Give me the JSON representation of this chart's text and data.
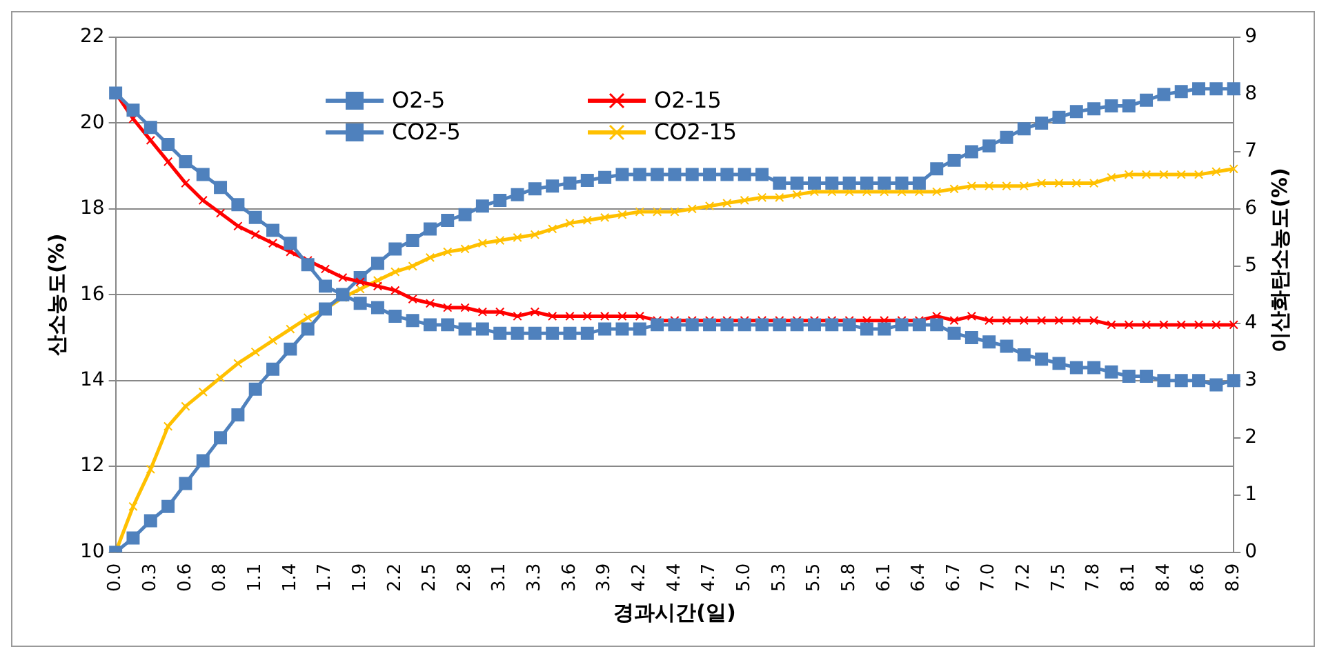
{
  "chart_data": {
    "type": "line",
    "xlabel": "경과시간(일)",
    "ylabel": "산소농도(%)",
    "y2label": "이산화탄소농도(%)",
    "categories": [
      "0.0",
      null,
      "0.3",
      null,
      "0.6",
      null,
      "0.8",
      null,
      "1.1",
      null,
      "1.4",
      null,
      "1.7",
      null,
      "1.9",
      null,
      "2.2",
      null,
      "2.5",
      null,
      "2.8",
      null,
      "3.1",
      null,
      "3.3",
      null,
      "3.6",
      null,
      "3.9",
      null,
      "4.2",
      null,
      "4.4",
      null,
      "4.7",
      null,
      "5.0",
      null,
      "5.3",
      null,
      "5.5",
      null,
      "5.8",
      null,
      "6.1",
      null,
      "6.4",
      null,
      "6.7",
      null,
      "7.0",
      null,
      "7.2",
      null,
      "7.5",
      null,
      "7.8",
      null,
      "8.1",
      null,
      "8.4",
      null,
      "8.6",
      null,
      "8.9"
    ],
    "series": [
      {
        "name": "O2-5",
        "color": "#4f81bd",
        "marker": "square",
        "values": [
          20.7,
          20.3,
          19.9,
          19.5,
          19.1,
          18.8,
          18.5,
          18.1,
          17.8,
          17.5,
          17.2,
          16.7,
          16.2,
          16.0,
          15.8,
          15.7,
          15.5,
          15.4,
          15.3,
          15.3,
          15.2,
          15.2,
          15.1,
          15.1,
          15.1,
          15.1,
          15.1,
          15.1,
          15.2,
          15.2,
          15.2,
          15.3,
          15.3,
          15.3,
          15.3,
          15.3,
          15.3,
          15.3,
          15.3,
          15.3,
          15.3,
          15.3,
          15.3,
          15.2,
          15.2,
          15.3,
          15.3,
          15.3,
          15.1,
          15.0,
          14.9,
          14.8,
          14.6,
          14.5,
          14.4,
          14.3,
          14.3,
          14.2,
          14.1,
          14.1,
          14.0,
          14.0,
          14.0,
          13.9,
          14.0
        ]
      },
      {
        "name": "O2-15",
        "color": "#ff0000",
        "marker": "cross",
        "values": [
          20.7,
          20.1,
          19.6,
          19.1,
          18.6,
          18.2,
          17.9,
          17.6,
          17.4,
          17.2,
          17.0,
          16.8,
          16.6,
          16.4,
          16.3,
          16.2,
          16.1,
          15.9,
          15.8,
          15.7,
          15.7,
          15.6,
          15.6,
          15.5,
          15.6,
          15.5,
          15.5,
          15.5,
          15.5,
          15.5,
          15.5,
          15.4,
          15.4,
          15.4,
          15.4,
          15.4,
          15.4,
          15.4,
          15.4,
          15.4,
          15.4,
          15.4,
          15.4,
          15.4,
          15.4,
          15.4,
          15.4,
          15.5,
          15.4,
          15.5,
          15.4,
          15.4,
          15.4,
          15.4,
          15.4,
          15.4,
          15.4,
          15.3,
          15.3,
          15.3,
          15.3,
          15.3,
          15.3,
          15.3,
          15.3
        ]
      },
      {
        "name": "CO2-5",
        "color": "#4f81bd",
        "marker": "square",
        "axis": "y2",
        "values": [
          0,
          0.25,
          0.55,
          0.8,
          1.2,
          1.6,
          2.0,
          2.4,
          2.85,
          3.2,
          3.55,
          3.9,
          4.25,
          4.5,
          4.8,
          5.05,
          5.3,
          5.45,
          5.65,
          5.8,
          5.9,
          6.05,
          6.15,
          6.25,
          6.35,
          6.4,
          6.45,
          6.5,
          6.55,
          6.6,
          6.6,
          6.6,
          6.6,
          6.6,
          6.6,
          6.6,
          6.6,
          6.6,
          6.45,
          6.45,
          6.45,
          6.45,
          6.45,
          6.45,
          6.45,
          6.45,
          6.45,
          6.7,
          6.85,
          7.0,
          7.1,
          7.25,
          7.4,
          7.5,
          7.6,
          7.7,
          7.75,
          7.8,
          7.8,
          7.9,
          8.0,
          8.05,
          8.1,
          8.1,
          8.1
        ]
      },
      {
        "name": "CO2-15",
        "color": "#ffc000",
        "marker": "cross",
        "axis": "y2",
        "values": [
          0,
          0.8,
          1.45,
          2.2,
          2.55,
          2.8,
          3.05,
          3.3,
          3.5,
          3.7,
          3.9,
          4.1,
          4.25,
          4.45,
          4.6,
          4.75,
          4.9,
          5.0,
          5.15,
          5.25,
          5.3,
          5.4,
          5.45,
          5.5,
          5.55,
          5.65,
          5.75,
          5.8,
          5.85,
          5.9,
          5.95,
          5.95,
          5.95,
          6.0,
          6.05,
          6.1,
          6.15,
          6.2,
          6.2,
          6.25,
          6.3,
          6.3,
          6.3,
          6.3,
          6.3,
          6.3,
          6.3,
          6.3,
          6.35,
          6.4,
          6.4,
          6.4,
          6.4,
          6.45,
          6.45,
          6.45,
          6.45,
          6.55,
          6.6,
          6.6,
          6.6,
          6.6,
          6.6,
          6.65,
          6.7
        ]
      }
    ],
    "ylim": [
      10,
      22
    ],
    "yticks": [
      10,
      12,
      14,
      16,
      18,
      20,
      22
    ],
    "y2lim": [
      0,
      9
    ],
    "y2ticks": [
      0,
      1,
      2,
      3,
      4,
      5,
      6,
      7,
      8,
      9
    ],
    "grid": "y",
    "legend": "top"
  }
}
